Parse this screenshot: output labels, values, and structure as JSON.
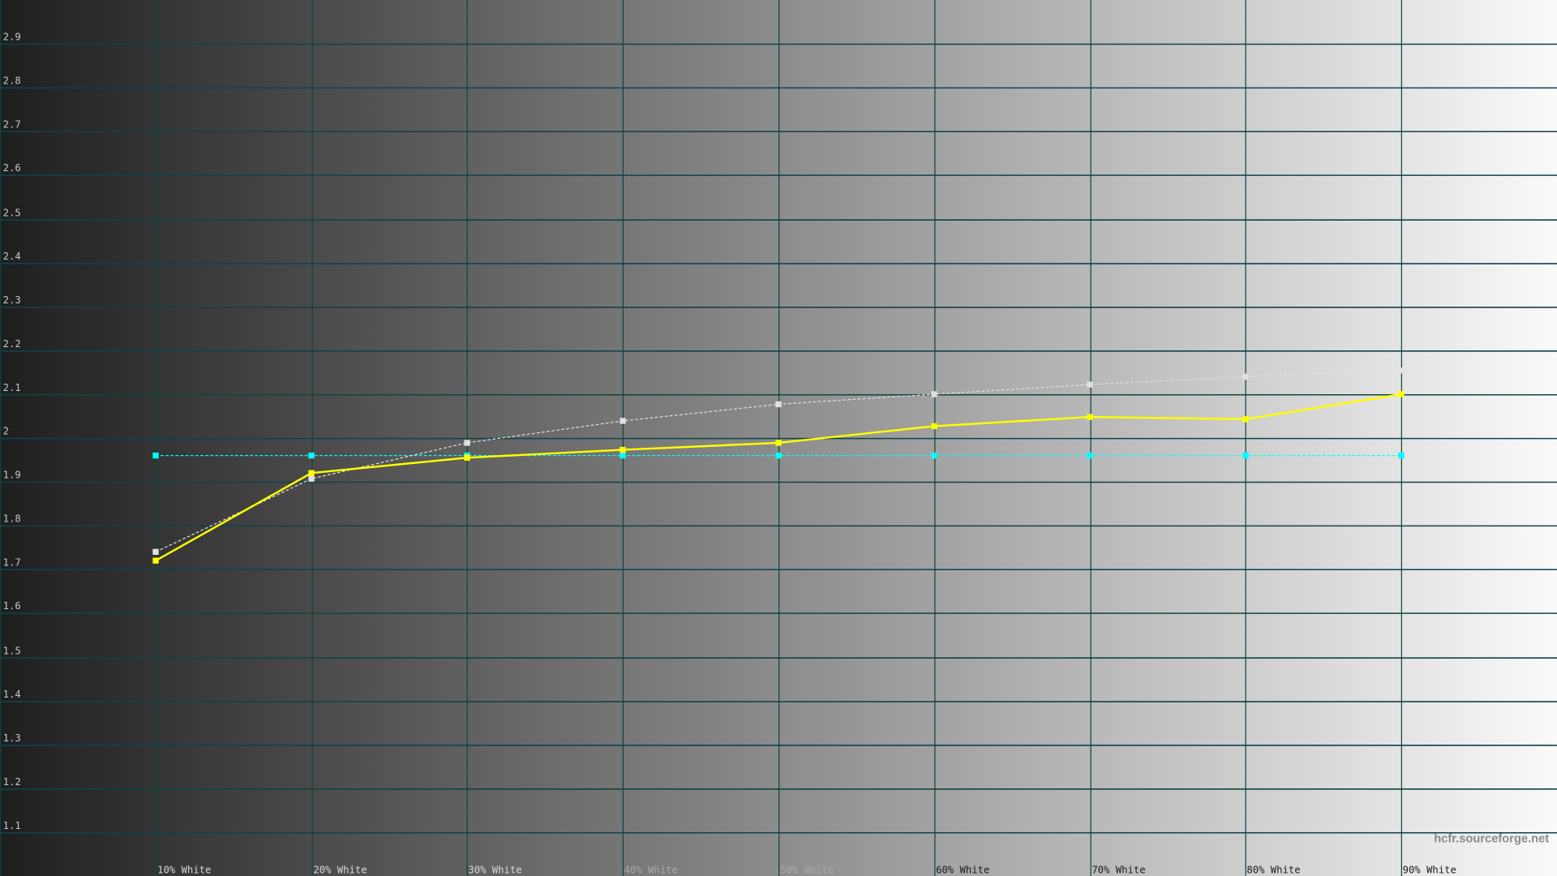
{
  "chart_data": {
    "type": "line",
    "title": "",
    "xlabel": "",
    "ylabel": "",
    "categories": [
      "10% White",
      "20% White",
      "30% White",
      "40% White",
      "50% White",
      "60% White",
      "70% White",
      "80% White",
      "90% White"
    ],
    "x_percent": [
      10,
      20,
      30,
      40,
      50,
      60,
      70,
      80,
      90
    ],
    "xlim": [
      0,
      100
    ],
    "ylim": [
      1.0,
      3.0
    ],
    "yticks": [
      1.1,
      1.2,
      1.3,
      1.4,
      1.5,
      1.6,
      1.7,
      1.8,
      1.9,
      2,
      2.1,
      2.2,
      2.3,
      2.4,
      2.5,
      2.6,
      2.7,
      2.8,
      2.9
    ],
    "ytick_labels": [
      "1.1",
      "1.2",
      "1.3",
      "1.4",
      "1.5",
      "1.6",
      "1.7",
      "1.8",
      "1.9",
      "2",
      "2.1",
      "2.2",
      "2.3",
      "2.4",
      "2.5",
      "2.6",
      "2.7",
      "2.8",
      "2.9"
    ],
    "grid": true,
    "background": "horizontal grayscale gradient black to white",
    "series": [
      {
        "color": "#ffff00",
        "style": "solid",
        "values": [
          1.72,
          1.92,
          1.955,
          1.973,
          1.989,
          2.027,
          2.048,
          2.043,
          2.1
        ]
      },
      {
        "color": "#e0e0e0",
        "style": "dotted",
        "values": [
          1.74,
          1.907,
          1.989,
          2.039,
          2.077,
          2.1,
          2.122,
          2.14,
          2.154
        ]
      },
      {
        "color": "#00ffff",
        "style": "dotted",
        "values": [
          1.96,
          1.96,
          1.96,
          1.96,
          1.96,
          1.96,
          1.96,
          1.96,
          1.96
        ]
      }
    ],
    "colors": {
      "grid": "#0e4444",
      "gradient_start": "#1e1e1e",
      "gradient_end": "#fafafa"
    }
  },
  "watermark": "hcfr.sourceforge.net"
}
